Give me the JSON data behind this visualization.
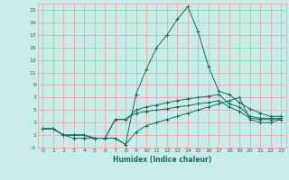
{
  "xlabel": "Humidex (Indice chaleur)",
  "x": [
    0,
    1,
    2,
    3,
    4,
    5,
    6,
    7,
    8,
    9,
    10,
    11,
    12,
    13,
    14,
    15,
    16,
    17,
    18,
    19,
    20,
    21,
    22,
    23
  ],
  "line1": [
    2,
    2,
    1,
    0.5,
    0.5,
    0.5,
    0.5,
    0.5,
    -0.5,
    7.5,
    11.5,
    15,
    17,
    19.5,
    21.5,
    17.5,
    12,
    8.0,
    7.5,
    6.2,
    5.2,
    4.5,
    4.0,
    4.0
  ],
  "line2": [
    2,
    2,
    1,
    1,
    1,
    0.5,
    0.5,
    3.5,
    3.5,
    5.0,
    5.5,
    5.8,
    6.2,
    6.5,
    6.8,
    7.0,
    7.2,
    7.5,
    6.0,
    5.5,
    4.0,
    3.7,
    3.7,
    3.7
  ],
  "line3": [
    2,
    2,
    1,
    1,
    1,
    0.5,
    0.5,
    3.5,
    3.5,
    4.5,
    4.8,
    5.0,
    5.2,
    5.5,
    5.7,
    6.0,
    6.2,
    6.5,
    5.5,
    4.8,
    3.7,
    3.5,
    3.5,
    3.5
  ],
  "line4": [
    2,
    2,
    1,
    1,
    1,
    0.5,
    0.5,
    0.5,
    -0.5,
    1.5,
    2.5,
    3.0,
    3.5,
    4.0,
    4.5,
    5.0,
    5.5,
    6.0,
    6.5,
    7.0,
    3.5,
    3.0,
    3.0,
    3.5
  ],
  "line_color": "#1a6b5e",
  "bg_color": "#c8ede8",
  "grid_color_major": "#e8a0a0",
  "grid_color_minor": "#e8a0a0",
  "text_color": "#1a6b5e",
  "ylim": [
    -1,
    22
  ],
  "xlim": [
    -0.5,
    23.5
  ],
  "yticks": [
    -1,
    1,
    3,
    5,
    7,
    9,
    11,
    13,
    15,
    17,
    19,
    21
  ],
  "xticks": [
    0,
    1,
    2,
    3,
    4,
    5,
    6,
    7,
    8,
    9,
    10,
    11,
    12,
    13,
    14,
    15,
    16,
    17,
    18,
    19,
    20,
    21,
    22,
    23
  ]
}
